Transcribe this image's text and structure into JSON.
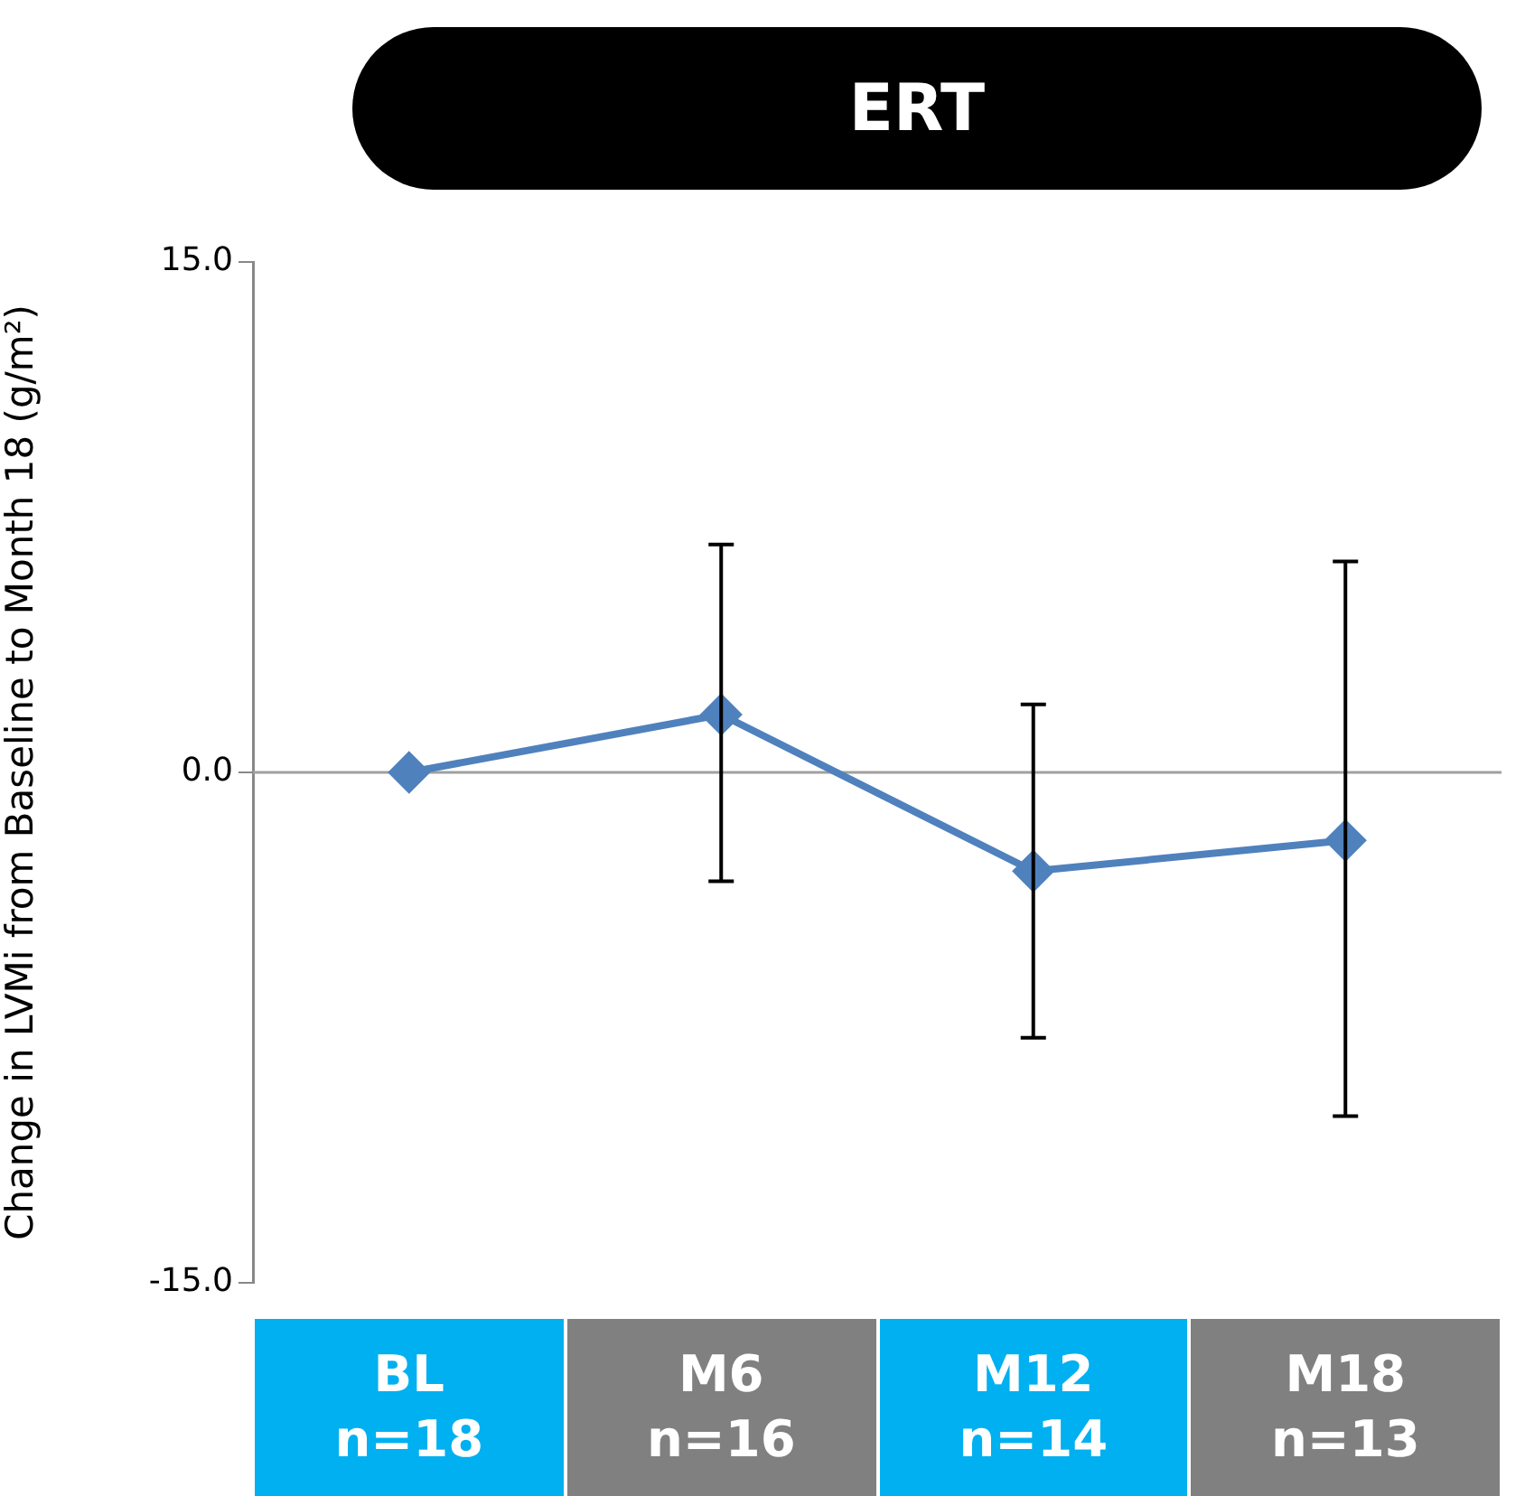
{
  "chart_data": {
    "type": "line",
    "title": "ERT",
    "ylabel": "Change in LVMi from Baseline to Month 18 (g/m²)",
    "categories": [
      "BL\nn=18",
      "M6\nn=16",
      "M12\nn=14",
      "M18\nn=13"
    ],
    "series": [
      {
        "color": "#4f81bd",
        "values": [
          0,
          1.7,
          -2.9,
          -2.0
        ],
        "errors": [
          null,
          [
            -3.2,
            6.7
          ],
          [
            -7.8,
            2.0
          ],
          [
            -10.1,
            6.2
          ]
        ]
      }
    ],
    "ylim": [
      -15,
      15
    ],
    "yticks": [
      {
        "value": -15,
        "label": "-15.0"
      },
      {
        "value": 0,
        "label": "0.0"
      },
      {
        "value": 15,
        "label": "15.0"
      }
    ],
    "ref_lines": [
      {
        "axis": "y",
        "value": 0,
        "color": "#a0a0a0"
      }
    ],
    "grid": false,
    "legend": false,
    "marker": "diamond",
    "line_style": "solid"
  }
}
